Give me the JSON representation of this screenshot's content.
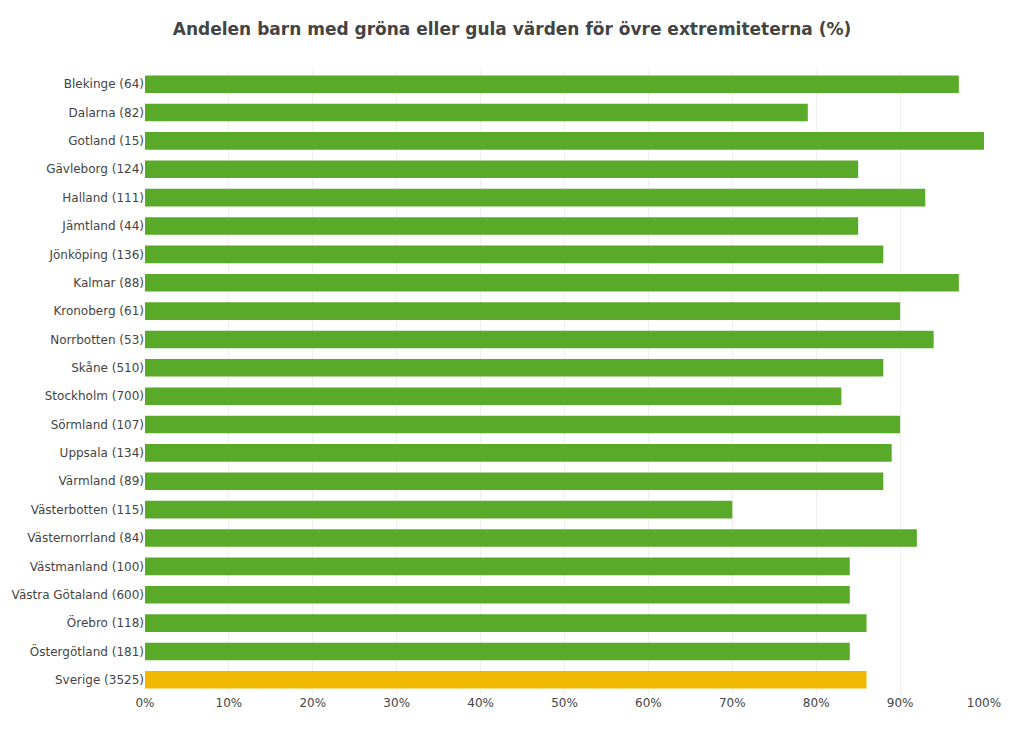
{
  "chart_data": {
    "type": "bar",
    "orientation": "horizontal",
    "title": "Andelen barn med gröna eller gula värden för övre extremiteterna (%)",
    "categories": [
      "Blekinge (64)",
      "Dalarna (82)",
      "Gotland (15)",
      "Gävleborg (124)",
      "Halland (111)",
      "Jämtland (44)",
      "Jönköping (136)",
      "Kalmar (88)",
      "Kronoberg (61)",
      "Norrbotten (53)",
      "Skåne (510)",
      "Stockholm (700)",
      "Sörmland (107)",
      "Uppsala (134)",
      "Värmland (89)",
      "Västerbotten (115)",
      "Västernorrland (84)",
      "Västmanland (100)",
      "Västra Götaland (600)",
      "Örebro (118)",
      "Östergötland (181)",
      "Sverige (3525)"
    ],
    "values": [
      97,
      79,
      100,
      85,
      93,
      85,
      88,
      97,
      90,
      94,
      88,
      83,
      90,
      89,
      88,
      70,
      92,
      84,
      84,
      86,
      84,
      86
    ],
    "colors": [
      "#5aaa2a",
      "#5aaa2a",
      "#5aaa2a",
      "#5aaa2a",
      "#5aaa2a",
      "#5aaa2a",
      "#5aaa2a",
      "#5aaa2a",
      "#5aaa2a",
      "#5aaa2a",
      "#5aaa2a",
      "#5aaa2a",
      "#5aaa2a",
      "#5aaa2a",
      "#5aaa2a",
      "#5aaa2a",
      "#5aaa2a",
      "#5aaa2a",
      "#5aaa2a",
      "#5aaa2a",
      "#5aaa2a",
      "#f0b800"
    ],
    "xlim": [
      0,
      100
    ],
    "xticks": [
      {
        "value": 0,
        "label": "0%"
      },
      {
        "value": 10,
        "label": "10%"
      },
      {
        "value": 20,
        "label": "20%"
      },
      {
        "value": 30,
        "label": "30%"
      },
      {
        "value": 40,
        "label": "40%"
      },
      {
        "value": 50,
        "label": "50%"
      },
      {
        "value": 60,
        "label": "60%"
      },
      {
        "value": 70,
        "label": "70%"
      },
      {
        "value": 80,
        "label": "80%"
      },
      {
        "value": 90,
        "label": "90%"
      },
      {
        "value": 100,
        "label": "100%"
      }
    ],
    "grid": true
  }
}
